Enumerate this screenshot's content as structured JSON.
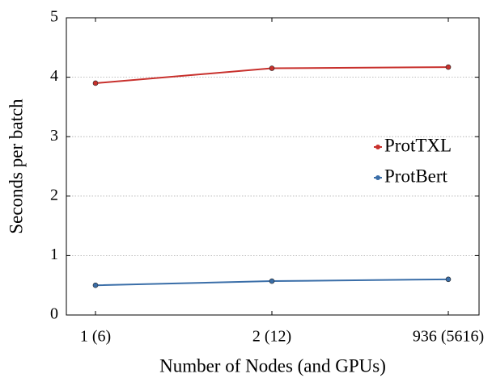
{
  "chart_data": {
    "type": "line",
    "xlabel": "Number of Nodes (and GPUs)",
    "ylabel": "Seconds per batch",
    "categories": [
      "1 (6)",
      "2 (12)",
      "936 (5616)"
    ],
    "series": [
      {
        "name": "ProtTXL",
        "color": "#c8302c",
        "values": [
          3.9,
          4.15,
          4.17
        ]
      },
      {
        "name": "ProtBert",
        "color": "#3a6ea8",
        "values": [
          0.5,
          0.57,
          0.6
        ]
      }
    ],
    "ylim": [
      0,
      5
    ],
    "yticks": [
      0,
      1,
      2,
      3,
      4,
      5
    ],
    "grid": true,
    "legend": "right"
  }
}
